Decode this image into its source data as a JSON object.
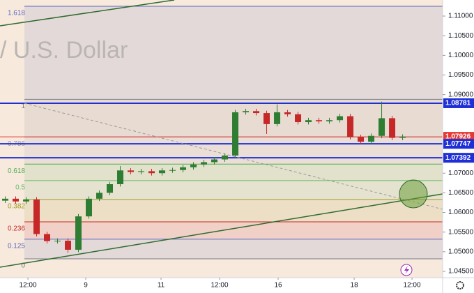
{
  "chart_data": {
    "type": "candlestick",
    "watermark": "/ U.S. Dollar",
    "x": [
      0,
      1,
      2,
      3,
      4,
      5,
      6,
      7,
      8,
      9,
      10,
      11,
      12,
      13,
      14,
      15,
      16,
      17,
      18,
      19,
      20,
      21,
      22,
      23,
      24,
      25,
      26,
      27,
      28,
      29,
      30,
      31,
      32,
      33,
      34,
      35,
      36,
      37,
      38
    ],
    "open": [
      1.063,
      1.0635,
      1.0628,
      1.0633,
      1.0545,
      1.0527,
      1.0528,
      1.0505,
      1.059,
      1.0635,
      1.065,
      1.0672,
      1.0707,
      1.0703,
      1.0705,
      1.07,
      1.0707,
      1.0708,
      1.0715,
      1.0722,
      1.0728,
      1.0735,
      1.0745,
      1.0855,
      1.0858,
      1.0853,
      1.0825,
      1.0855,
      1.085,
      1.083,
      1.0835,
      1.0832,
      1.0835,
      1.0845,
      1.0792,
      1.078,
      1.0795,
      1.084,
      1.079
    ],
    "high": [
      1.0641,
      1.0641,
      1.0639,
      1.0639,
      1.0551,
      1.0534,
      1.0534,
      1.0596,
      1.0641,
      1.0656,
      1.0678,
      1.0718,
      1.0713,
      1.0711,
      1.0711,
      1.0713,
      1.0714,
      1.0721,
      1.0728,
      1.0734,
      1.0741,
      1.0751,
      1.0861,
      1.0864,
      1.0864,
      1.0859,
      1.0875,
      1.0861,
      1.0856,
      1.0841,
      1.0841,
      1.0841,
      1.0851,
      1.0851,
      1.0798,
      1.0801,
      1.0882,
      1.0846,
      1.0799
    ],
    "low": [
      1.0624,
      1.0622,
      1.0622,
      1.0539,
      1.0521,
      1.0521,
      1.0497,
      1.0499,
      1.0584,
      1.0629,
      1.0644,
      1.0666,
      1.0697,
      1.0697,
      1.0694,
      1.0694,
      1.0701,
      1.0702,
      1.0709,
      1.0716,
      1.0722,
      1.0729,
      1.0739,
      1.0849,
      1.0847,
      1.08,
      1.0819,
      1.0844,
      1.0824,
      1.0824,
      1.0826,
      1.0826,
      1.0829,
      1.0786,
      1.0774,
      1.0774,
      1.0789,
      1.0784,
      1.0784
    ],
    "close": [
      1.0635,
      1.0628,
      1.0633,
      1.0545,
      1.0527,
      1.0528,
      1.0505,
      1.059,
      1.0635,
      1.065,
      1.0672,
      1.0707,
      1.0703,
      1.0705,
      1.07,
      1.0707,
      1.0708,
      1.0715,
      1.0722,
      1.0728,
      1.0735,
      1.0745,
      1.0855,
      1.0858,
      1.0853,
      1.0825,
      1.0855,
      1.085,
      1.083,
      1.0835,
      1.0832,
      1.0835,
      1.0845,
      1.0792,
      1.078,
      1.0795,
      1.084,
      1.079,
      1.0793
    ],
    "up_color": "#2e7d32",
    "down_color": "#c62828",
    "xlim": [
      -0.5,
      41.83
    ],
    "xticks": [
      {
        "value": 2.17,
        "label": "12:00"
      },
      {
        "value": 7.7,
        "label": "9"
      },
      {
        "value": 14.9,
        "label": "11"
      },
      {
        "value": 20.5,
        "label": "12:00"
      },
      {
        "value": 26.1,
        "label": "16"
      },
      {
        "value": 33.37,
        "label": "18"
      },
      {
        "value": 38.9,
        "label": "12:00"
      }
    ],
    "ylim": [
      1.0434,
      1.11409
    ],
    "yticks": [
      {
        "value": 1.11,
        "label": "1.11000"
      },
      {
        "value": 1.105,
        "label": "1.10500"
      },
      {
        "value": 1.1,
        "label": "1.10000"
      },
      {
        "value": 1.095,
        "label": "1.09500"
      },
      {
        "value": 1.09,
        "label": "1.09000"
      },
      {
        "value": 1.07,
        "label": "1.07000"
      },
      {
        "value": 1.065,
        "label": "1.06500"
      },
      {
        "value": 1.06,
        "label": "1.06000"
      },
      {
        "value": 1.055,
        "label": "1.05500"
      },
      {
        "value": 1.05,
        "label": "1.05000"
      },
      {
        "value": 1.045,
        "label": "1.04500"
      }
    ],
    "fib_levels": [
      {
        "ratio": 1.618,
        "price": 1.1125,
        "color": "#5c6bc0"
      },
      {
        "ratio": 1,
        "price": 1.0888,
        "color": "#787b86"
      },
      {
        "ratio": 0.786,
        "price": 1.0792,
        "color": "#9598a1"
      },
      {
        "ratio": 0.618,
        "price": 1.0723,
        "color": "#4caf50"
      },
      {
        "ratio": 0.5,
        "price": 1.0681,
        "color": "#66bb6a"
      },
      {
        "ratio": 0.382,
        "price": 1.0633,
        "color": "#9e9d24"
      },
      {
        "ratio": 0.236,
        "price": 1.0576,
        "color": "#c62828"
      },
      {
        "ratio": 0.125,
        "price": 1.0532,
        "color": "#5c6bc0"
      },
      {
        "ratio": 0,
        "price": 1.0482,
        "color": "#787b86"
      }
    ],
    "price_markers": [
      {
        "value": 1.08781,
        "color": "#1e2fd6"
      },
      {
        "value": 1.07926,
        "color": "#e53935"
      },
      {
        "value": 1.07747,
        "color": "#1e2fd6"
      },
      {
        "value": 1.07392,
        "color": "#1e2fd6"
      }
    ]
  }
}
